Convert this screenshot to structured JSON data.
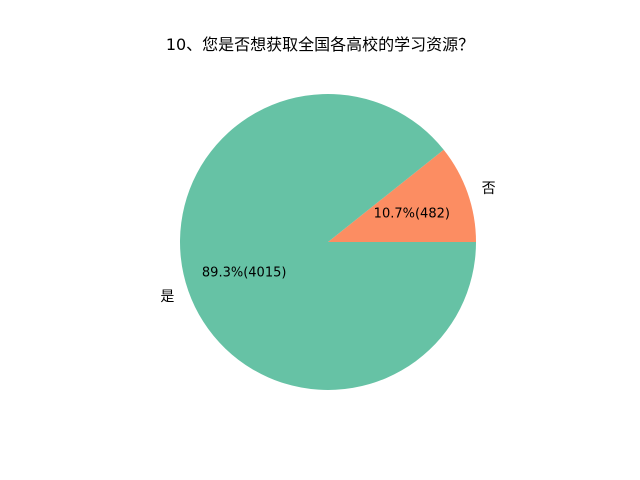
{
  "chart_data": {
    "type": "pie",
    "title": "10、您是否想获取全国各高校的学习资源？",
    "categories": [
      "否",
      "是"
    ],
    "values": [
      482,
      4015
    ],
    "percent_labels": [
      "10.7%(482)",
      "89.3%(4015)"
    ],
    "colors": [
      "#fc8d62",
      "#66c2a5"
    ],
    "start_angle_deg": 0,
    "direction": "counterclockwise"
  }
}
